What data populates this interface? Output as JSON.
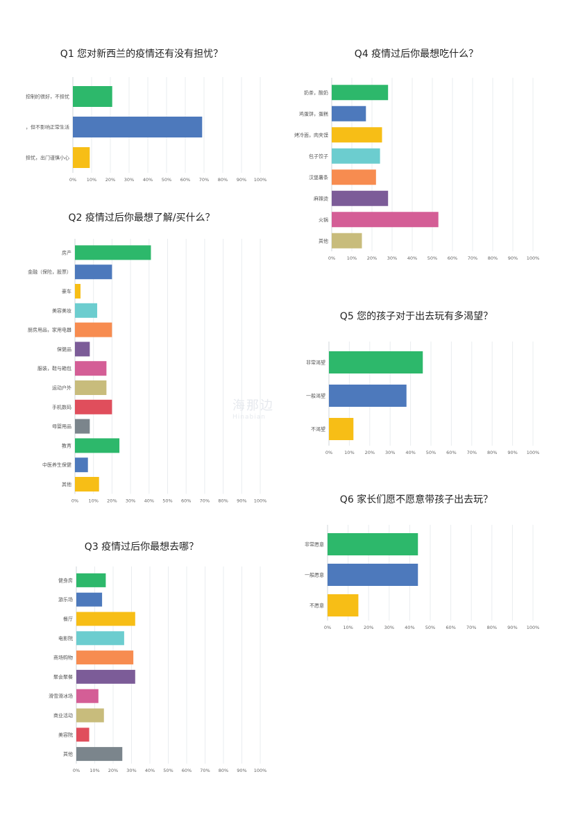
{
  "colors": [
    "#2db86b",
    "#4d79bc",
    "#f7be16",
    "#6ccdcf",
    "#f78c50",
    "#7c5c98",
    "#d45e96",
    "#c8bc7c",
    "#e04e5c",
    "#7b858c"
  ],
  "axis_ticks": [
    "0%",
    "10%",
    "20%",
    "30%",
    "40%",
    "50%",
    "60%",
    "70%",
    "80%",
    "90%",
    "100%"
  ],
  "watermark": {
    "cn": "海那边",
    "en": "Hinabian"
  },
  "chart_data": [
    {
      "id": "q1",
      "type": "bar",
      "orientation": "horizontal",
      "title": "Q1 您对新西兰的疫情还有没有担忧？",
      "categories": [
        "控制的很好，不担忧",
        "，但不影响正常生活",
        "担忧，出门谨慎小心"
      ],
      "values": [
        21,
        69,
        9
      ],
      "xlim": [
        0,
        100
      ],
      "grid": true
    },
    {
      "id": "q2",
      "type": "bar",
      "orientation": "horizontal",
      "title": "Q2 疫情过后你最想了解/买什么？",
      "categories": [
        "房产",
        "金融（保险，股票）",
        "豪车",
        "美容美妆",
        "厨房用品，家用电器",
        "保健品",
        "服装，鞋与箱包",
        "运动户外",
        "手机数码",
        "母婴用品",
        "教育",
        "中医养生保健",
        "其他"
      ],
      "values": [
        41,
        20,
        3,
        12,
        20,
        8,
        17,
        17,
        20,
        8,
        24,
        7,
        13
      ],
      "xlim": [
        0,
        100
      ],
      "grid": true
    },
    {
      "id": "q3",
      "type": "bar",
      "orientation": "horizontal",
      "title": "Q3 疫情过后你最想去哪？",
      "categories": [
        "健身房",
        "游乐场",
        "餐厅",
        "电影院",
        "商场购物",
        "聚会聚餐",
        "滑雪滑冰场",
        "商业活动",
        "美容院",
        "其他"
      ],
      "values": [
        16,
        14,
        32,
        26,
        31,
        32,
        12,
        15,
        7,
        25
      ],
      "xlim": [
        0,
        100
      ],
      "grid": true
    },
    {
      "id": "q4",
      "type": "bar",
      "orientation": "horizontal",
      "title": "Q4 疫情过后你最想吃什么？",
      "categories": [
        "奶茶，酸奶",
        "鸡蛋饼，蛋糕",
        "烤冷面，肉夹馍",
        "包子饺子",
        "汉堡薯条",
        "麻辣烫",
        "火锅",
        "其他"
      ],
      "values": [
        28,
        17,
        25,
        24,
        22,
        28,
        53,
        15
      ],
      "xlim": [
        0,
        100
      ],
      "grid": true
    },
    {
      "id": "q5",
      "type": "bar",
      "orientation": "horizontal",
      "title": "Q5 您的孩子对于出去玩有多渴望？",
      "categories": [
        "非常渴望",
        "一般渴望",
        "不渴望"
      ],
      "values": [
        46,
        38,
        12
      ],
      "xlim": [
        0,
        100
      ],
      "grid": true
    },
    {
      "id": "q6",
      "type": "bar",
      "orientation": "horizontal",
      "title": "Q6 家长们愿不愿意带孩子出去玩？",
      "categories": [
        "非常愿意",
        "一般愿意",
        "不愿意"
      ],
      "values": [
        44,
        44,
        15
      ],
      "xlim": [
        0,
        100
      ],
      "grid": true
    }
  ]
}
